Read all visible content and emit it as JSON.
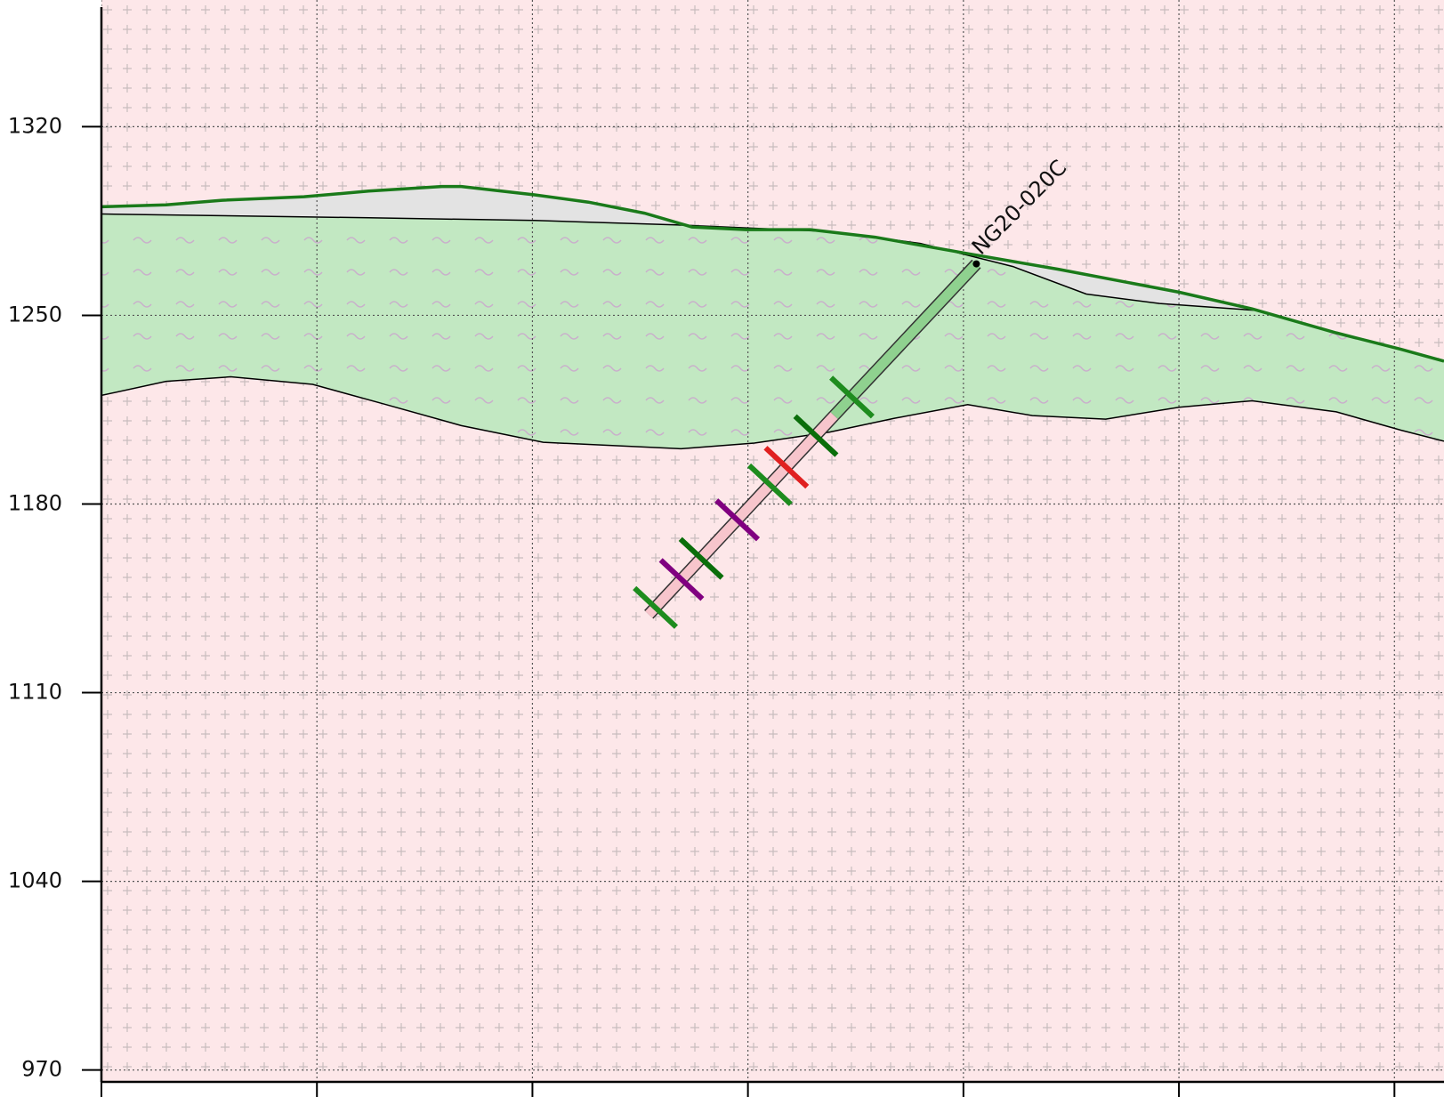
{
  "chart_data": {
    "type": "section",
    "ylim": [
      965.6,
      1367
    ],
    "yticks": [
      970,
      1040,
      1110,
      1180,
      1250,
      1320
    ],
    "xlim": [
      0,
      6.23
    ],
    "xticks": [
      0,
      1,
      2,
      3,
      4,
      5,
      6
    ],
    "grid": true,
    "background_fill": "#fde7e9",
    "surfaces": [
      {
        "color": "#000000",
        "fill": "#c2e8c2",
        "x": [
          0,
          0.3,
          0.6,
          0.98,
          1.32,
          1.67,
          2.05,
          2.69,
          3.03,
          3.38,
          3.68,
          4.02,
          4.32,
          4.66,
          5.0,
          5.34,
          5.73,
          6.03,
          6.23
        ],
        "y": [
          1220.3,
          1225.5,
          1227.2,
          1224.4,
          1216.9,
          1209.1,
          1202.9,
          1200.5,
          1202.6,
          1206.7,
          1211.8,
          1216.9,
          1212.8,
          1211.5,
          1215.9,
          1218.3,
          1214.2,
          1207.4,
          1203.3
        ]
      },
      {
        "color": "#000000",
        "fill": "#e3e3e3",
        "x": [
          0,
          1.24,
          2.01,
          2.69,
          3.38,
          3.8,
          4.23,
          4.57,
          4.91,
          5.38,
          5.73,
          6.03,
          6.23
        ],
        "y": [
          1287.6,
          1286.2,
          1285.2,
          1283.5,
          1281.1,
          1276.7,
          1268.1,
          1257.9,
          1254.4,
          1251.7,
          1243.5,
          1237.4,
          1233.0
        ]
      },
      {
        "color": "#1a7a1a",
        "x": [
          0,
          0.3,
          0.56,
          0.94,
          1.24,
          1.58,
          1.67,
          2.01,
          2.26,
          2.52,
          2.74,
          2.99,
          3.29,
          3.59,
          4.02,
          4.44,
          5.0,
          5.34,
          5.73,
          6.03,
          6.23
        ],
        "y": [
          1290.3,
          1291.0,
          1292.7,
          1294.0,
          1296.1,
          1297.8,
          1297.8,
          1294.7,
          1292.0,
          1287.9,
          1282.8,
          1281.8,
          1281.8,
          1279.0,
          1272.9,
          1267.1,
          1258.6,
          1252.4,
          1243.5,
          1237.4,
          1233.0
        ]
      }
    ],
    "hole": {
      "label": "NG20-020C",
      "collar": [
        4.06,
        1269.1
      ],
      "split": [
        3.4,
        1212.8
      ],
      "end": [
        2.54,
        1139.0
      ],
      "colors": [
        "#8fd18f",
        "#f7c5cc"
      ],
      "intervals": [
        {
          "at": 0.38,
          "color": "#1e8c1e"
        },
        {
          "at": 0.49,
          "color": "#0a6e0a"
        },
        {
          "at": 0.58,
          "color": "#e02020"
        },
        {
          "at": 0.63,
          "color": "#1e8c1e"
        },
        {
          "at": 0.73,
          "color": "#800080"
        },
        {
          "at": 0.84,
          "color": "#0a6e0a"
        },
        {
          "at": 0.9,
          "color": "#800080"
        },
        {
          "at": 0.98,
          "color": "#1e8c1e"
        }
      ]
    }
  }
}
